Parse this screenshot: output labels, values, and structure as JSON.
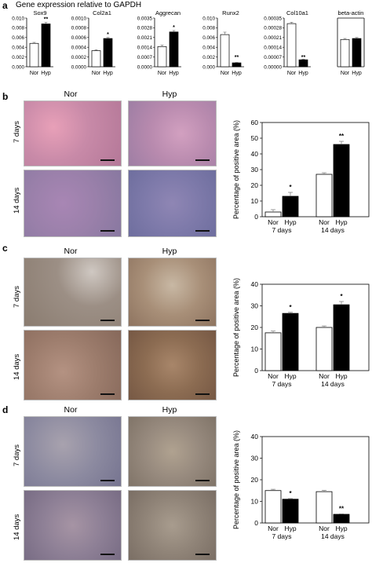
{
  "panel_a": {
    "letter": "a",
    "title": "Gene expression relative to GAPDH"
  },
  "panel_b": {
    "letter": "b",
    "column_labels": [
      "Nor",
      "Hyp"
    ],
    "row_labels": [
      "7 days",
      "14 days"
    ]
  },
  "panel_c": {
    "letter": "c",
    "column_labels": [
      "Nor",
      "Hyp"
    ],
    "row_labels": [
      "7 days",
      "14 days"
    ]
  },
  "panel_d": {
    "letter": "d",
    "column_labels": [
      "Nor",
      "Hyp"
    ],
    "row_labels": [
      "7 days",
      "14 days"
    ]
  },
  "colors": {
    "nor_fill": "#ffffff",
    "hyp_fill": "#000000",
    "axis": "#000000",
    "he_stain": "#c98aa6",
    "he_stain2": "#9a88b6",
    "ihc_stain": "#a89580",
    "ihc_stain2": "#8e7a66",
    "ihc_d": "#8e8fa6"
  },
  "chart_data": [
    {
      "id": "a1",
      "type": "bar",
      "title": "Sox9",
      "categories": [
        "Nor",
        "Hyp"
      ],
      "values": [
        0.0048,
        0.0088
      ],
      "errors": [
        0.0002,
        0.0003
      ],
      "significance": [
        "",
        "**"
      ],
      "ylim": [
        0,
        0.01
      ],
      "yticks": [
        "0.000",
        "0.002",
        "0.004",
        "0.006",
        "0.008",
        "0.010"
      ]
    },
    {
      "id": "a2",
      "type": "bar",
      "title": "Col2a1",
      "categories": [
        "Nor",
        "Hyp"
      ],
      "values": [
        0.00033,
        0.00058
      ],
      "errors": [
        2e-05,
        2e-05
      ],
      "significance": [
        "",
        "*"
      ],
      "ylim": [
        0,
        0.001
      ],
      "yticks": [
        "0.0000",
        "0.0002",
        "0.0004",
        "0.0006",
        "0.0008",
        "0.0010"
      ]
    },
    {
      "id": "a3",
      "type": "bar",
      "title": "Aggrecan",
      "categories": [
        "Nor",
        "Hyp"
      ],
      "values": [
        0.00145,
        0.0025
      ],
      "errors": [
        0.0001,
        0.0001
      ],
      "significance": [
        "",
        "*"
      ],
      "ylim": [
        0,
        0.0035
      ],
      "yticks": [
        "0.0000",
        "0.0007",
        "0.0014",
        "0.0021",
        "0.0028",
        "0.0035"
      ]
    },
    {
      "id": "a4",
      "type": "bar",
      "title": "Runx2",
      "categories": [
        "Nor",
        "Hyp"
      ],
      "values": [
        0.0066,
        0.0008
      ],
      "errors": [
        0.0005,
        0.0001
      ],
      "significance": [
        "",
        "**"
      ],
      "ylim": [
        0,
        0.01
      ],
      "yticks": [
        "0.000",
        "0.002",
        "0.004",
        "0.006",
        "0.008",
        "0.010"
      ]
    },
    {
      "id": "a5",
      "type": "bar",
      "title": "Col10a1",
      "categories": [
        "Nor",
        "Hyp"
      ],
      "values": [
        0.00031,
        5e-05
      ],
      "errors": [
        1e-05,
        5e-06
      ],
      "significance": [
        "",
        "**"
      ],
      "ylim": [
        0,
        0.00035
      ],
      "yticks": [
        "0.00000",
        "0.00007",
        "0.00014",
        "0.00021",
        "0.00028",
        "0.00035"
      ]
    },
    {
      "id": "a6",
      "type": "bar",
      "title": "beta-actin",
      "categories": [
        "Nor",
        "Hyp"
      ],
      "values": [
        1.4,
        1.45
      ],
      "errors": [
        0.05,
        0.05
      ],
      "significance": [
        "",
        ""
      ],
      "ylim": [
        0,
        2.5
      ],
      "yticks": []
    },
    {
      "id": "b",
      "type": "bar",
      "ylabel": "Percentage of positive  area (%)",
      "groups": [
        "7 days",
        "14 days"
      ],
      "categories": [
        "Nor",
        "Hyp"
      ],
      "values": [
        [
          3,
          13
        ],
        [
          27,
          46
        ]
      ],
      "errors": [
        [
          1.5,
          2.5
        ],
        [
          1,
          2
        ]
      ],
      "significance": [
        [
          "",
          "*"
        ],
        [
          "",
          "**"
        ]
      ],
      "ylim": [
        0,
        60
      ],
      "yticks": [
        "0",
        "10",
        "20",
        "30",
        "40",
        "50",
        "60"
      ]
    },
    {
      "id": "c",
      "type": "bar",
      "ylabel": "Percentage of positive  area (%)",
      "groups": [
        "7 days",
        "14 days"
      ],
      "categories": [
        "Nor",
        "Hyp"
      ],
      "values": [
        [
          17.5,
          26.5
        ],
        [
          20,
          30.5
        ]
      ],
      "errors": [
        [
          0.8,
          0.5
        ],
        [
          0.7,
          1.5
        ]
      ],
      "significance": [
        [
          "",
          "*"
        ],
        [
          "",
          "*"
        ]
      ],
      "ylim": [
        0,
        40
      ],
      "yticks": [
        "0",
        "10",
        "20",
        "30",
        "40"
      ]
    },
    {
      "id": "d",
      "type": "bar",
      "ylabel": "Percentage of positive  area (%)",
      "groups": [
        "7 days",
        "14 days"
      ],
      "categories": [
        "Nor",
        "Hyp"
      ],
      "values": [
        [
          15,
          11
        ],
        [
          14.5,
          4
        ]
      ],
      "errors": [
        [
          0.6,
          0.3
        ],
        [
          0.6,
          0.2
        ]
      ],
      "significance": [
        [
          "",
          "*"
        ],
        [
          "",
          "**"
        ]
      ],
      "ylim": [
        0,
        40
      ],
      "yticks": [
        "0",
        "10",
        "20",
        "30",
        "40"
      ]
    }
  ]
}
